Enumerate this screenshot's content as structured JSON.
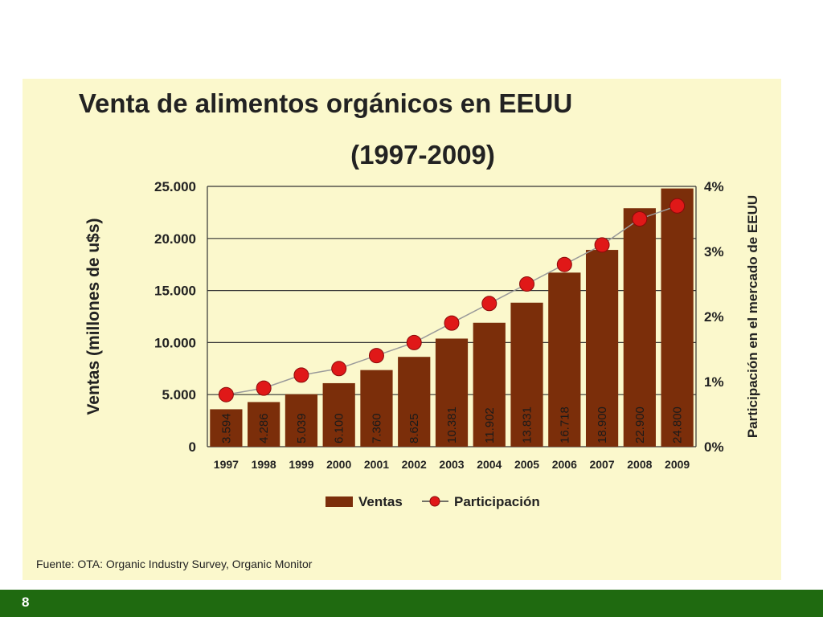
{
  "slide": {
    "number": "8",
    "footer_color": "#1f6a10",
    "background_color": "#fbf8cc"
  },
  "source": "Fuente: OTA: Organic  Industry Survey, Organic Monitor",
  "chart_data": {
    "type": "bar",
    "title": "Venta de alimentos orgánicos en EEUU",
    "subtitle": "(1997-2009)",
    "categories": [
      "1997",
      "1998",
      "1999",
      "2000",
      "2001",
      "2002",
      "2003",
      "2004",
      "2005",
      "2006",
      "2007",
      "2008",
      "2009"
    ],
    "ylabel": "Ventas (millones de u$s)",
    "ylabel_right": "Participación en el mercado de EEUU",
    "ylim": [
      0,
      25000
    ],
    "yticks": [
      0,
      5000,
      10000,
      15000,
      20000,
      25000
    ],
    "ytick_labels": [
      "0",
      "5.000",
      "10.000",
      "15.000",
      "20.000",
      "25.000"
    ],
    "ylim_right": [
      0,
      4
    ],
    "yticks_right": [
      0,
      1,
      2,
      3,
      4
    ],
    "ytick_labels_right": [
      "0%",
      "1%",
      "2%",
      "3%",
      "4%"
    ],
    "grid": true,
    "legend_position": "bottom",
    "series": [
      {
        "name": "Ventas",
        "type": "bar",
        "axis": "left",
        "color": "#7b2e0a",
        "values": [
          3594,
          4286,
          5039,
          6100,
          7360,
          8625,
          10381,
          11902,
          13831,
          16718,
          18900,
          22900,
          24800
        ],
        "labels": [
          "3.594",
          "4.286",
          "5.039",
          "6.100",
          "7.360",
          "8.625",
          "10.381",
          "11.902",
          "13.831",
          "16.718",
          "18.900",
          "22.900",
          "24.800"
        ]
      },
      {
        "name": "Participación",
        "type": "line",
        "axis": "right",
        "color": "#e01818",
        "line_color": "#9a9a9a",
        "values": [
          0.8,
          0.9,
          1.1,
          1.2,
          1.4,
          1.6,
          1.9,
          2.2,
          2.5,
          2.8,
          3.1,
          3.5,
          3.7
        ]
      }
    ]
  }
}
